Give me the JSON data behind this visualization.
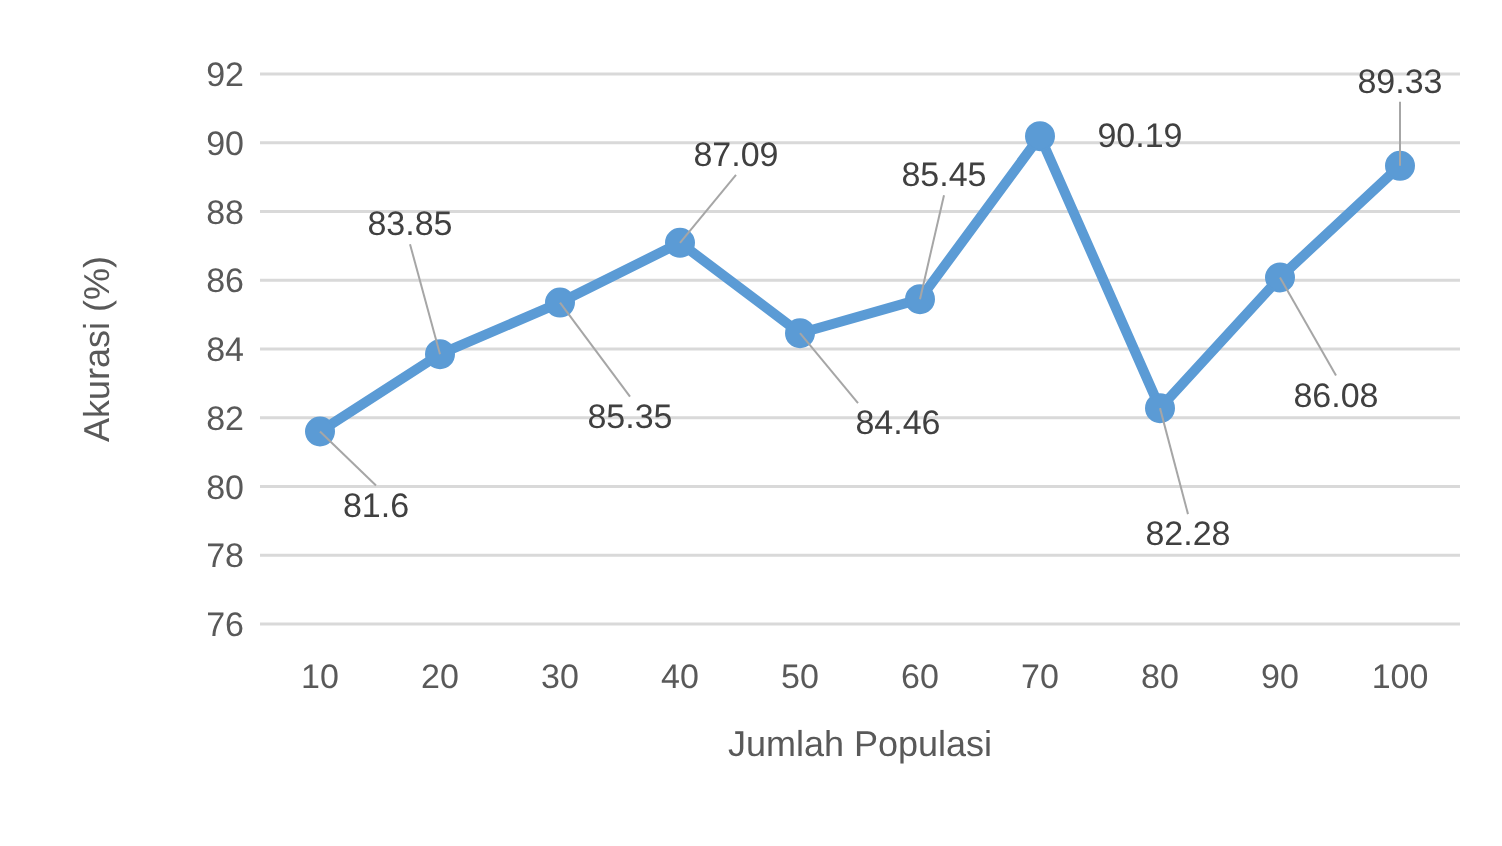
{
  "chart_data": {
    "type": "line",
    "xlabel": "Jumlah Populasi",
    "ylabel": "Akurasi (%)",
    "categories": [
      "10",
      "20",
      "30",
      "40",
      "50",
      "60",
      "70",
      "80",
      "90",
      "100"
    ],
    "series": [
      {
        "color": "#5b9bd5",
        "values": [
          81.6,
          83.85,
          85.35,
          87.09,
          84.46,
          85.45,
          90.19,
          82.28,
          86.08,
          89.33
        ]
      }
    ],
    "ylim": [
      76,
      92
    ],
    "yticks": [
      76,
      78,
      80,
      82,
      84,
      86,
      88,
      90,
      92
    ],
    "grid": "y",
    "legend": false,
    "marker": "circle",
    "line_style": "solid",
    "data_labels": true
  }
}
